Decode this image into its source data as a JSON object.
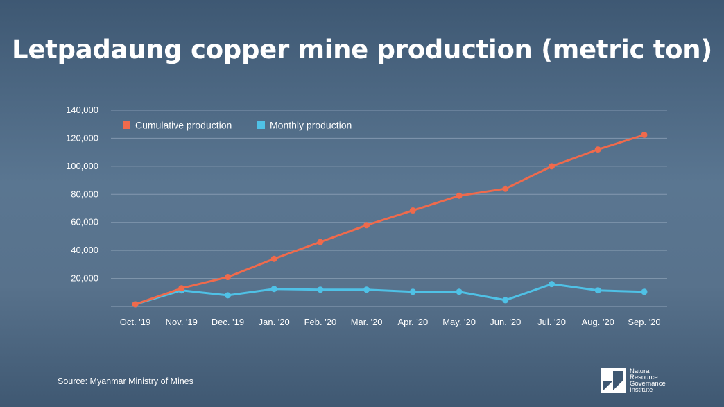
{
  "title": "Letpadaung copper mine production (metric ton)",
  "source": "Source: Myanmar Ministry of Mines",
  "logo": {
    "icon": "nrgi-logo-icon",
    "lines": [
      "Natural",
      "Resource",
      "Governance",
      "Institute"
    ]
  },
  "colors": {
    "cumulative": "#ef6a4c",
    "monthly": "#4fc1e6",
    "grid": "#8fa3b8"
  },
  "chart_data": {
    "type": "line",
    "title": "Letpadaung copper mine production (metric ton)",
    "xlabel": "",
    "ylabel": "",
    "categories": [
      "Oct. '19",
      "Nov. '19",
      "Dec. '19",
      "Jan. '20",
      "Feb. '20",
      "Mar. '20",
      "Apr. '20",
      "May. '20",
      "Jun. '20",
      "Jul. '20",
      "Aug. '20",
      "Sep. '20"
    ],
    "ylim": [
      0,
      140000
    ],
    "yticks": [
      20000,
      40000,
      60000,
      80000,
      100000,
      120000,
      140000
    ],
    "ytick_labels": [
      "20,000",
      "40,000",
      "60,000",
      "80,000",
      "100,000",
      "120,000",
      "140,000"
    ],
    "grid": true,
    "legend_position": "top-left",
    "series": [
      {
        "name": "Cumulative production",
        "color": "#ef6a4c",
        "values": [
          1500,
          13000,
          21000,
          34000,
          46000,
          58000,
          68500,
          79000,
          84000,
          100000,
          112000,
          122500
        ]
      },
      {
        "name": "Monthly production",
        "color": "#4fc1e6",
        "values": [
          1500,
          11500,
          8000,
          12500,
          12000,
          12000,
          10500,
          10500,
          4500,
          16000,
          11500,
          10500
        ]
      }
    ]
  }
}
